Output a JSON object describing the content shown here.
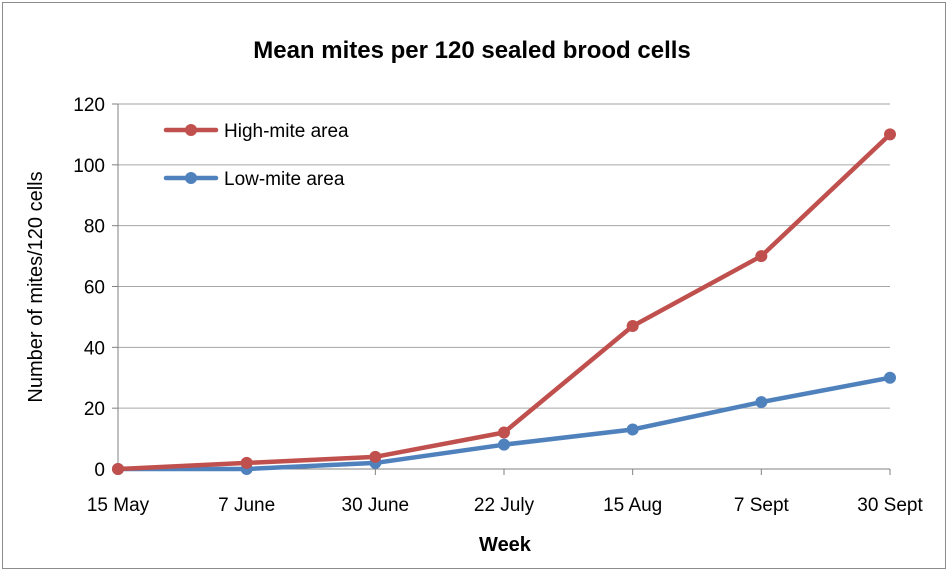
{
  "chart_data": {
    "type": "line",
    "title": "Mean mites per 120 sealed brood cells",
    "xlabel": "Week",
    "ylabel": "Number of mites/120 cells",
    "categories": [
      "15 May",
      "7 June",
      "30 June",
      "22 July",
      "15 Aug",
      "7 Sept",
      "30 Sept"
    ],
    "ylim": [
      0,
      120
    ],
    "yticks": [
      0,
      20,
      40,
      60,
      80,
      100,
      120
    ],
    "grid": true,
    "legend_position": "top-left",
    "series": [
      {
        "name": "High-mite area",
        "color": "#c0504d",
        "values": [
          0,
          2,
          4,
          12,
          47,
          70,
          110
        ]
      },
      {
        "name": "Low-mite area",
        "color": "#4f81bd",
        "values": [
          0,
          0,
          2,
          8,
          13,
          22,
          30
        ]
      }
    ]
  }
}
